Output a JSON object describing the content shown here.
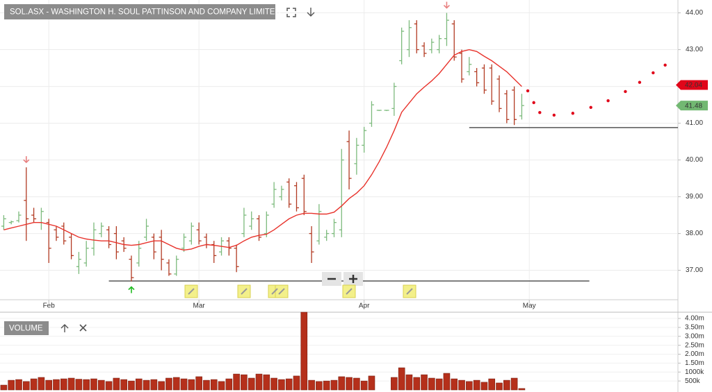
{
  "header": {
    "title": "SOL.ASX - WASHINGTON H. SOUL PATTINSON AND COMPANY LIMITED"
  },
  "chart_data": [
    {
      "type": "ohlc",
      "xlim": [
        -0.5,
        89.8
      ],
      "xticks": [
        {
          "value": 6,
          "label": "Feb"
        },
        {
          "value": 26,
          "label": "Mar"
        },
        {
          "value": 48,
          "label": "Apr"
        },
        {
          "value": 70,
          "label": "May"
        }
      ],
      "ylim": [
        36.2,
        44.35
      ],
      "yticks": [
        {
          "value": 37,
          "label": "37.00"
        },
        {
          "value": 38,
          "label": "38.00"
        },
        {
          "value": 39,
          "label": "39.00"
        },
        {
          "value": 40,
          "label": "40.00"
        },
        {
          "value": 41,
          "label": "41.00"
        },
        {
          "value": 42,
          "label": "42.00"
        },
        {
          "value": 43,
          "label": "43.00"
        },
        {
          "value": 44,
          "label": "44.00"
        }
      ],
      "grid": true,
      "up_color": "#7cba7c",
      "down_color": "#b23a22",
      "ohlc": [
        [
          38.2,
          38.5,
          38.1,
          38.4
        ],
        [
          38.3,
          38.35,
          38.25,
          38.32
        ],
        [
          38.35,
          38.6,
          38.3,
          38.5
        ],
        [
          38.9,
          39.8,
          37.8,
          38.4
        ],
        [
          38.5,
          38.7,
          38.3,
          38.4
        ],
        [
          38.3,
          38.7,
          38.1,
          38.6
        ],
        [
          38.3,
          38.4,
          37.2,
          37.6
        ],
        [
          38.1,
          38.2,
          37.8,
          37.9
        ],
        [
          38.2,
          38.3,
          37.7,
          37.8
        ],
        [
          37.9,
          38.0,
          37.3,
          37.4
        ],
        [
          37.1,
          37.5,
          36.9,
          37.3
        ],
        [
          37.2,
          37.8,
          37.1,
          37.6
        ],
        [
          37.6,
          38.3,
          37.4,
          38.1
        ],
        [
          38.0,
          38.3,
          37.9,
          38.2
        ],
        [
          38.1,
          38.2,
          37.6,
          37.7
        ],
        [
          38.0,
          38.2,
          37.3,
          37.5
        ],
        [
          37.8,
          37.9,
          37.5,
          37.6
        ],
        [
          37.3,
          37.4,
          36.7,
          36.8
        ],
        [
          37.2,
          37.8,
          37.1,
          37.6
        ],
        [
          37.9,
          38.4,
          37.8,
          38.2
        ],
        [
          37.9,
          38.0,
          37.3,
          37.5
        ],
        [
          37.9,
          38.1,
          37.0,
          37.3
        ],
        [
          37.2,
          37.3,
          36.85,
          36.9
        ],
        [
          36.9,
          37.4,
          36.85,
          37.3
        ],
        [
          37.6,
          38.0,
          37.5,
          37.9
        ],
        [
          37.8,
          38.3,
          37.7,
          38.2
        ],
        [
          38.1,
          38.3,
          37.7,
          37.8
        ],
        [
          37.9,
          38.0,
          37.6,
          37.7
        ],
        [
          37.7,
          37.8,
          37.2,
          37.4
        ],
        [
          37.5,
          37.9,
          37.4,
          37.8
        ],
        [
          37.8,
          37.9,
          37.4,
          37.6
        ],
        [
          37.6,
          37.7,
          36.95,
          37.1
        ],
        [
          38.0,
          38.7,
          37.9,
          38.5
        ],
        [
          38.2,
          38.6,
          38.1,
          38.4
        ],
        [
          38.4,
          38.5,
          37.8,
          37.9
        ],
        [
          38.0,
          38.6,
          37.9,
          38.5
        ],
        [
          38.8,
          39.4,
          38.7,
          39.2
        ],
        [
          39.0,
          39.3,
          38.9,
          39.2
        ],
        [
          39.4,
          39.5,
          38.7,
          38.8
        ],
        [
          39.3,
          39.4,
          38.6,
          38.7
        ],
        [
          39.5,
          39.6,
          38.5,
          38.6
        ],
        [
          38.0,
          38.2,
          37.2,
          37.5
        ],
        [
          37.8,
          38.8,
          37.7,
          38.6
        ],
        [
          37.9,
          38.1,
          37.8,
          38.0
        ],
        [
          38.0,
          38.4,
          37.9,
          38.3
        ],
        [
          38.1,
          40.3,
          37.9,
          40.0
        ],
        [
          40.5,
          40.8,
          39.2,
          39.5
        ],
        [
          39.9,
          40.6,
          39.6,
          40.4
        ],
        [
          40.4,
          40.9,
          40.2,
          40.8
        ],
        [
          41.0,
          41.6,
          40.9,
          41.5
        ],
        [
          41.35,
          41.35,
          41.35,
          41.35
        ],
        [
          41.35,
          41.35,
          41.35,
          41.35
        ],
        [
          41.4,
          42.1,
          41.2,
          42.0
        ],
        [
          42.7,
          43.6,
          42.6,
          43.5
        ],
        [
          43.0,
          43.8,
          42.8,
          43.6
        ],
        [
          43.7,
          43.8,
          42.9,
          43.0
        ],
        [
          43.1,
          43.2,
          42.8,
          42.9
        ],
        [
          43.0,
          43.3,
          42.9,
          43.2
        ],
        [
          43.0,
          43.4,
          42.9,
          43.3
        ],
        [
          43.3,
          44.0,
          43.1,
          43.8
        ],
        [
          43.7,
          43.8,
          42.7,
          42.8
        ],
        [
          42.9,
          43.0,
          42.1,
          42.2
        ],
        [
          42.4,
          42.8,
          42.3,
          42.6
        ],
        [
          42.4,
          42.5,
          42.0,
          42.1
        ],
        [
          42.5,
          42.6,
          41.8,
          41.9
        ],
        [
          42.5,
          42.6,
          41.5,
          41.6
        ],
        [
          42.2,
          42.3,
          41.3,
          41.4
        ],
        [
          41.8,
          41.9,
          41.0,
          41.1
        ],
        [
          41.9,
          42.0,
          40.95,
          41.1
        ],
        [
          41.2,
          41.8,
          41.1,
          41.48
        ]
      ],
      "moving_average": {
        "color": "#e8322b",
        "values": [
          38.1,
          38.15,
          38.2,
          38.25,
          38.3,
          38.3,
          38.25,
          38.2,
          38.1,
          38.0,
          37.9,
          37.85,
          37.82,
          37.8,
          37.8,
          37.75,
          37.7,
          37.68,
          37.7,
          37.75,
          37.8,
          37.8,
          37.7,
          37.6,
          37.55,
          37.58,
          37.65,
          37.7,
          37.68,
          37.65,
          37.62,
          37.68,
          37.8,
          37.9,
          37.95,
          37.98,
          38.1,
          38.25,
          38.4,
          38.5,
          38.55,
          38.55,
          38.53,
          38.53,
          38.58,
          38.75,
          38.95,
          39.1,
          39.3,
          39.6,
          39.95,
          40.35,
          40.8,
          41.3,
          41.55,
          41.8,
          41.98,
          42.15,
          42.35,
          42.6,
          42.85,
          42.95,
          43.0,
          42.95,
          42.82,
          42.7,
          42.55,
          42.4,
          42.2,
          42.0
        ]
      },
      "forecast": {
        "color": "#e0061a",
        "x": [
          69.8,
          70.6,
          71.4,
          73.3,
          75.8,
          78.2,
          80.5,
          82.8,
          84.7,
          86.5,
          88.1
        ],
        "values": [
          41.88,
          41.56,
          41.29,
          41.22,
          41.27,
          41.43,
          41.61,
          41.86,
          42.11,
          42.37,
          42.58
        ]
      },
      "hlines": [
        {
          "y": 40.88,
          "x": [
            62,
            89.8
          ]
        },
        {
          "y": 36.71,
          "x": [
            14,
            78
          ]
        }
      ],
      "signals": [
        {
          "index": 3,
          "dir": "down",
          "color": "#e88080"
        },
        {
          "index": 59,
          "dir": "down",
          "color": "#e88080"
        },
        {
          "index": 17,
          "dir": "up",
          "color": "#22bb22"
        }
      ],
      "price_tags": [
        {
          "value": 42.04,
          "color": "#e0061a"
        },
        {
          "value": 41.48,
          "color": "#72b872"
        }
      ]
    },
    {
      "type": "bar",
      "title": "VOLUME",
      "color": "#b5301b",
      "ylim": [
        0,
        4350000
      ],
      "yticks": [
        {
          "value": 500000,
          "label": "500k"
        },
        {
          "value": 1000000,
          "label": "1000k"
        },
        {
          "value": 1500000,
          "label": "1.50m"
        },
        {
          "value": 2000000,
          "label": "2.00m"
        },
        {
          "value": 2500000,
          "label": "2.50m"
        },
        {
          "value": 3000000,
          "label": "3.00m"
        },
        {
          "value": 3500000,
          "label": "3.50m"
        },
        {
          "value": 4000000,
          "label": "4.00m"
        }
      ],
      "values": [
        270000,
        540000,
        580000,
        470000,
        620000,
        700000,
        540000,
        580000,
        620000,
        660000,
        600000,
        580000,
        620000,
        540000,
        470000,
        660000,
        580000,
        500000,
        620000,
        540000,
        580000,
        470000,
        660000,
        700000,
        620000,
        580000,
        740000,
        540000,
        580000,
        470000,
        620000,
        890000,
        850000,
        660000,
        890000,
        850000,
        660000,
        580000,
        620000,
        780000,
        4350000,
        540000,
        470000,
        500000,
        540000,
        740000,
        700000,
        660000,
        500000,
        780000,
        0,
        0,
        700000,
        1240000,
        850000,
        700000,
        850000,
        660000,
        620000,
        930000,
        620000,
        540000,
        470000,
        540000,
        430000,
        620000,
        390000,
        540000,
        660000,
        80000
      ]
    }
  ]
}
